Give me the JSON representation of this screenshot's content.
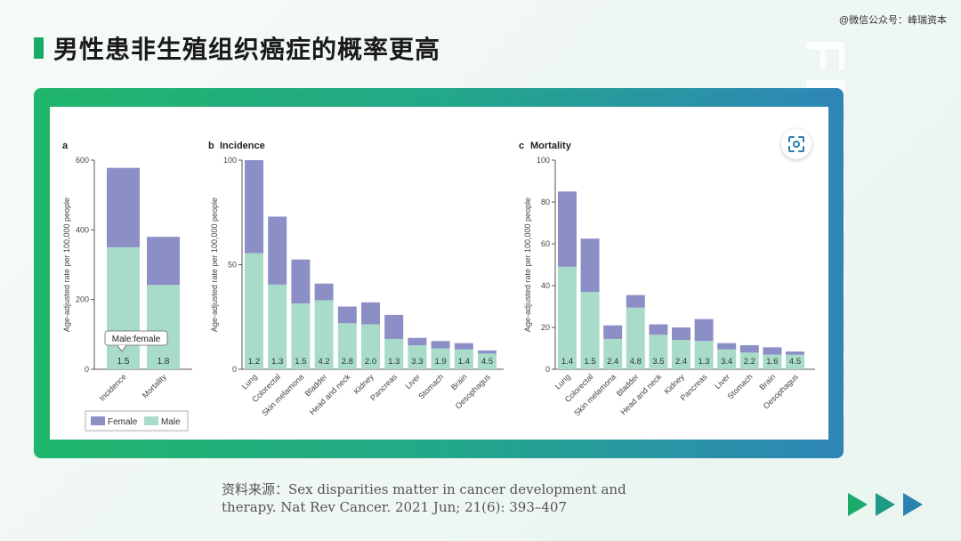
{
  "watermark": "@微信公众号：峰瑞资本",
  "title": "男性患非生殖组织癌症的概率更高",
  "brand_text": "FREES FUND",
  "source": {
    "line1": "资料来源：Sex disparities matter in cancer development and",
    "line2": "therapy. Nat Rev Cancer. 2021 Jun; 21(6): 393–407"
  },
  "colors": {
    "female": "#8c8fc6",
    "male": "#a8dcc9",
    "accent": "#1aaa6a",
    "arrow1": "#1aaa6a",
    "arrow2": "#1f9a86",
    "arrow3": "#2a82b0"
  },
  "icons": {
    "scan": "scan-icon",
    "arrows": "triple-arrow-icon"
  },
  "chart_data": [
    {
      "panel": "a",
      "type": "bar",
      "stacked": true,
      "title": "",
      "ylabel": "Age-adjusted rate per 100,000 people",
      "ylim": [
        0,
        600
      ],
      "yticks": [
        0,
        200,
        400,
        600
      ],
      "categories": [
        "Incidence",
        "Mortality"
      ],
      "series": [
        {
          "name": "Male",
          "values": [
            350,
            242
          ]
        },
        {
          "name": "Female",
          "values": [
            228,
            138
          ]
        }
      ],
      "ratio_labels": [
        "1.5",
        "1.8"
      ],
      "annotation": "Male:female",
      "legend": {
        "position": "bottom",
        "items": [
          "Female",
          "Male"
        ]
      }
    },
    {
      "panel": "b",
      "type": "bar",
      "stacked": true,
      "title": "Incidence",
      "ylabel": "Age-adjusted rate per 100,000 people",
      "ylim": [
        0,
        100
      ],
      "yticks": [
        0,
        50,
        100
      ],
      "categories": [
        "Lung",
        "Colorectal",
        "Skin melamona",
        "Bladder",
        "Head and neck",
        "Kidney",
        "Pancreas",
        "Liver",
        "Stomach",
        "Brain",
        "Oesophagus"
      ],
      "series": [
        {
          "name": "Male",
          "values": [
            55.5,
            40.5,
            31.5,
            33,
            22,
            21.5,
            14.5,
            11.5,
            10,
            9.5,
            7.5
          ]
        },
        {
          "name": "Female",
          "values": [
            44.5,
            32.5,
            21,
            8,
            8,
            10.5,
            11.5,
            3.5,
            3.5,
            3,
            1.5
          ]
        }
      ],
      "ratio_labels": [
        "1.2",
        "1.3",
        "1.5",
        "4.2",
        "2.8",
        "2.0",
        "1.3",
        "3.3",
        "1.9",
        "1.4",
        "4.5"
      ]
    },
    {
      "panel": "c",
      "type": "bar",
      "stacked": true,
      "title": "Mortality",
      "ylabel": "Age-adjusted rate per 100,000 people",
      "ylim": [
        0,
        100
      ],
      "yticks": [
        0,
        20,
        40,
        60,
        80,
        100
      ],
      "categories": [
        "Lung",
        "Colorectal",
        "Skin melamona",
        "Bladder",
        "Head and neck",
        "Kidney",
        "Pancreas",
        "Liver",
        "Stomach",
        "Brain",
        "Oesophagus"
      ],
      "series": [
        {
          "name": "Male",
          "values": [
            49,
            37,
            14.5,
            29.5,
            16.5,
            14,
            13.5,
            9.5,
            8,
            7,
            7
          ]
        },
        {
          "name": "Female",
          "values": [
            36,
            25.5,
            6.5,
            6,
            5,
            6,
            10.5,
            3,
            3.5,
            3.5,
            1.5
          ]
        }
      ],
      "ratio_labels": [
        "1.4",
        "1.5",
        "2.4",
        "4.8",
        "3.5",
        "2.4",
        "1.3",
        "3.4",
        "2.2",
        "1.6",
        "4.5"
      ]
    }
  ]
}
